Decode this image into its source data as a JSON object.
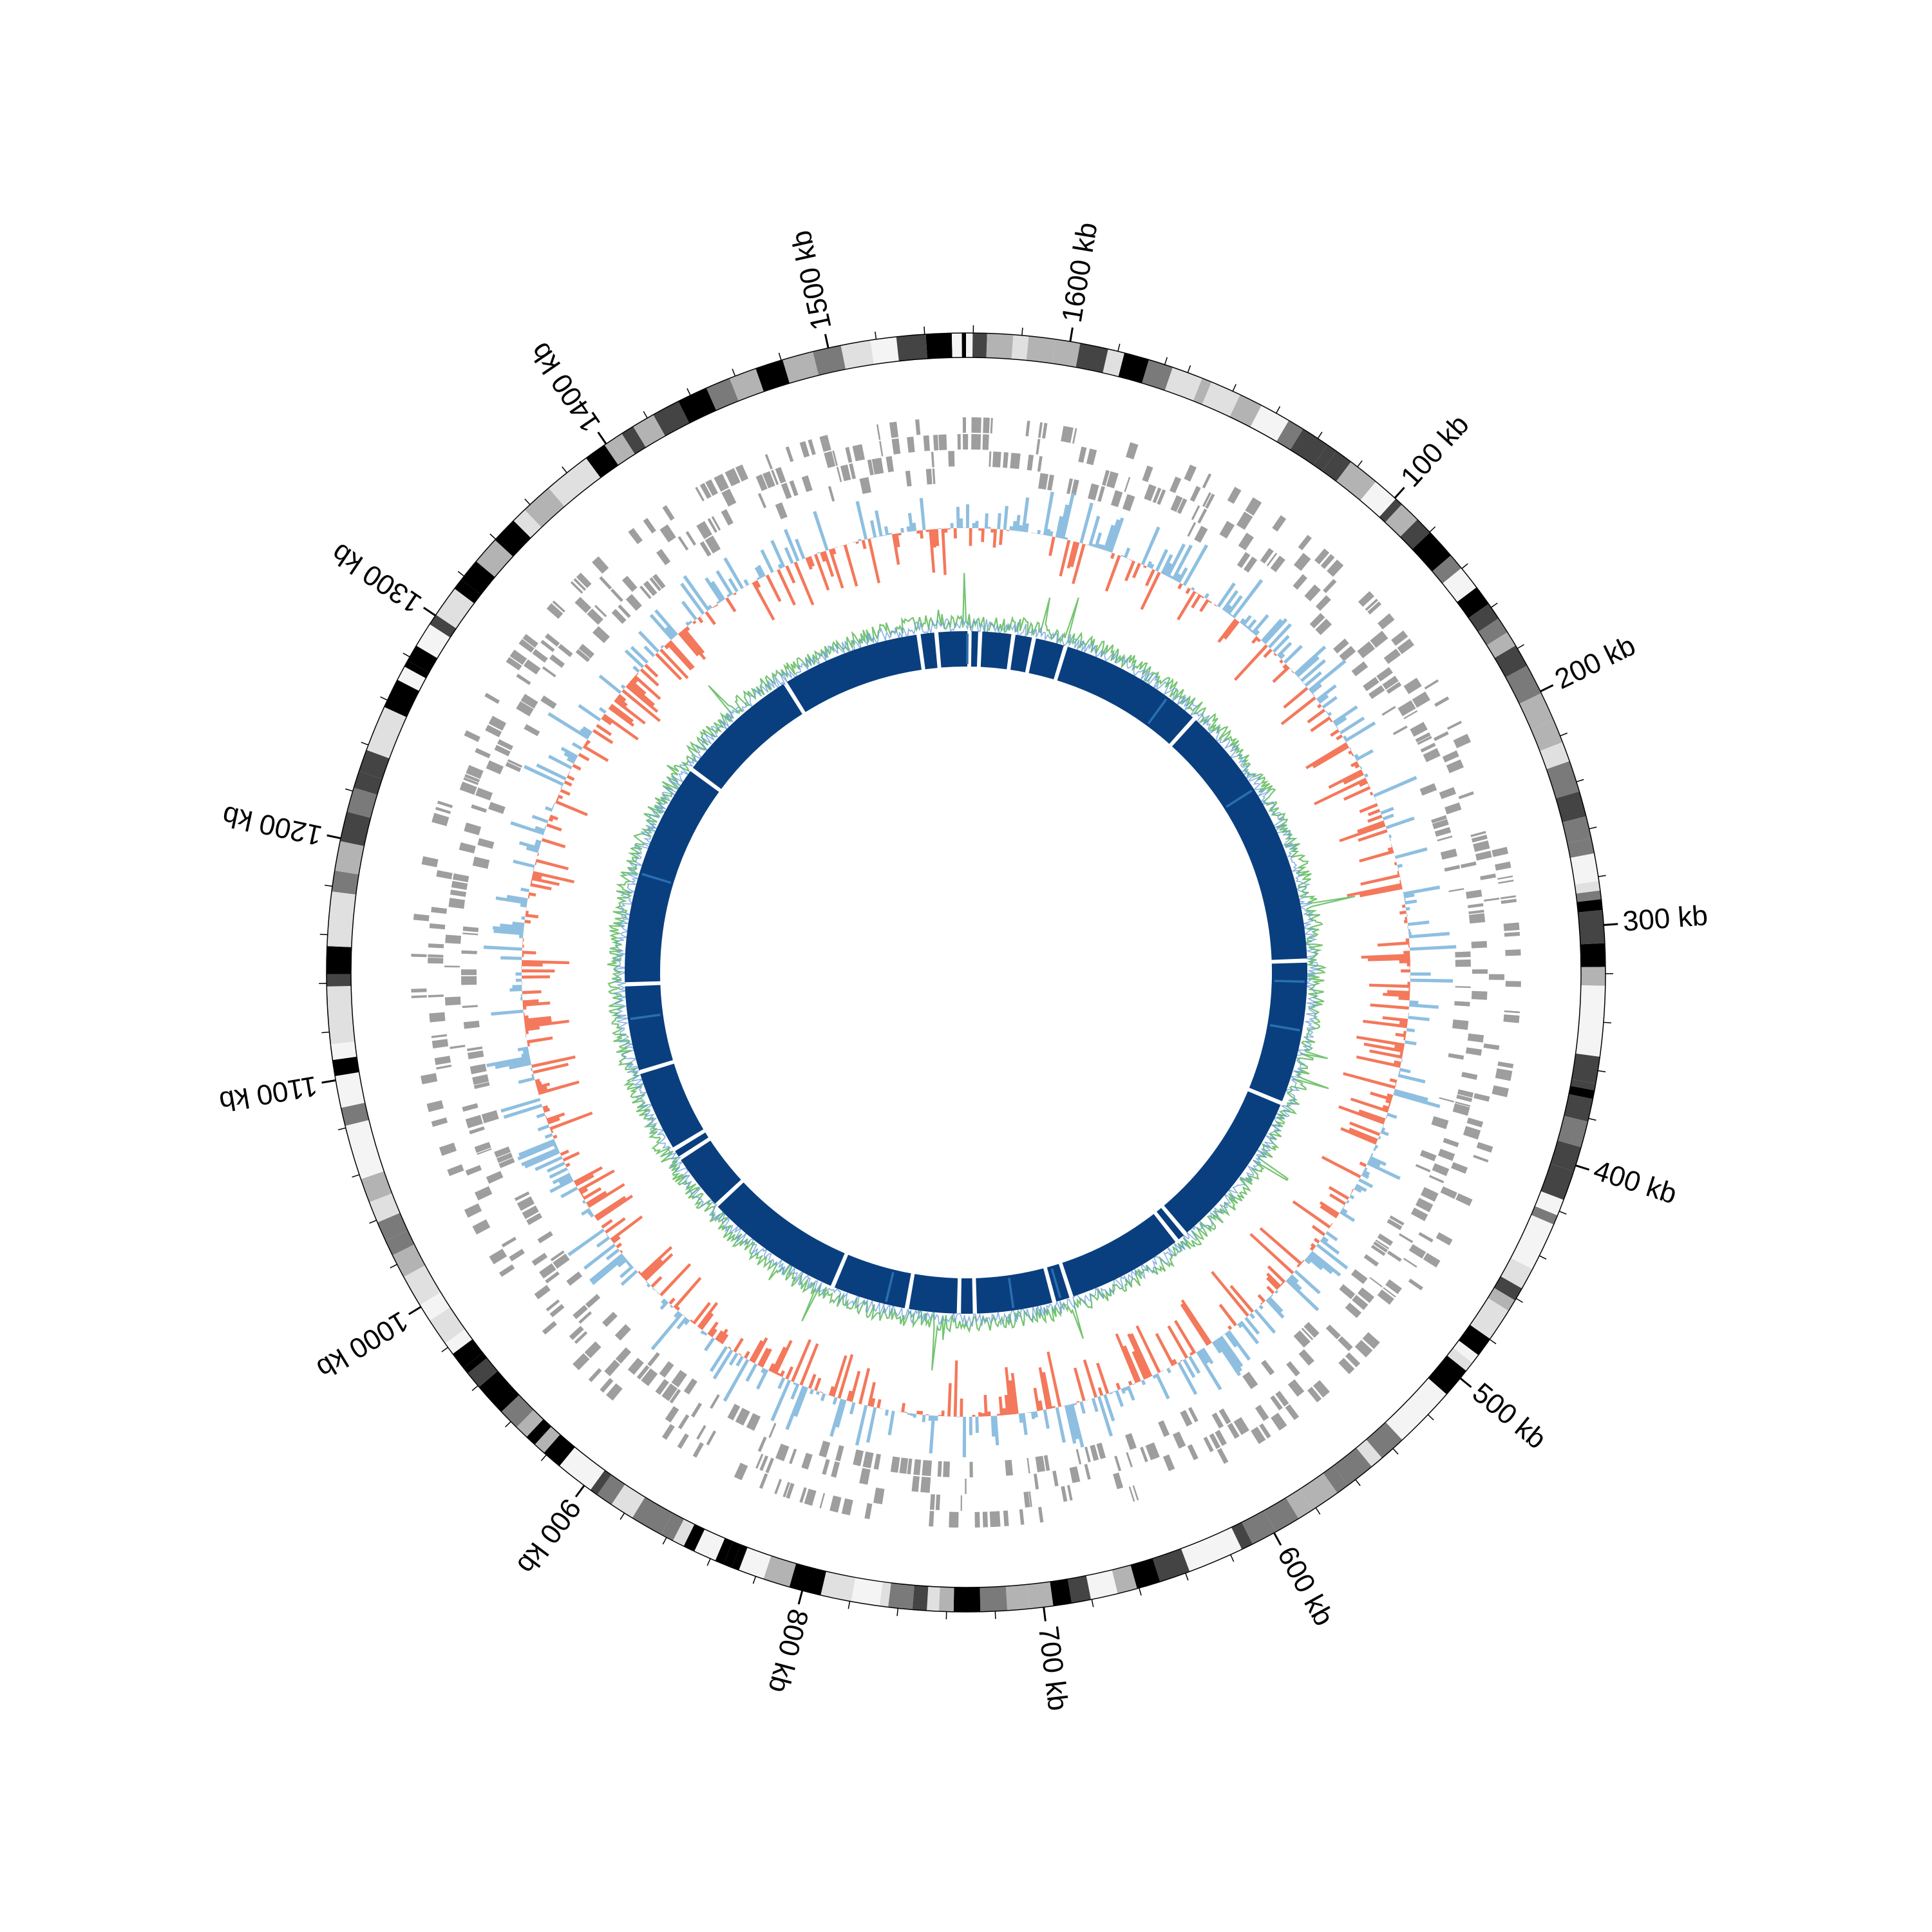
{
  "genome": {
    "length_kb": 1650,
    "tick_unit": "kb",
    "major_ticks_kb": [
      100,
      200,
      300,
      400,
      500,
      600,
      700,
      800,
      900,
      1000,
      1100,
      1200,
      1300,
      1400,
      1500,
      1600
    ],
    "tick_labels": [
      "100 kb",
      "200 kb",
      "300 kb",
      "400 kb",
      "500 kb",
      "600 kb",
      "700 kb",
      "800 kb",
      "900 kb",
      "1000 kb",
      "1100 kb",
      "1200 kb",
      "1300 kb",
      "1400 kb",
      "1500 kb",
      "1600 kb"
    ]
  },
  "tracks": [
    {
      "name": "ideogram-bands",
      "kind": "bands",
      "palette": [
        "#000000",
        "#444444",
        "#7a7a7a",
        "#b3b3b3",
        "#e0e0e0",
        "#f4f4f4"
      ]
    },
    {
      "name": "gene-features",
      "kind": "stacked-blocks",
      "color": "#9e9e9e"
    },
    {
      "name": "gc-skew",
      "kind": "diverging-area",
      "positive_color": "#8ebfe0",
      "negative_color": "#f4785b"
    },
    {
      "name": "gc-content",
      "kind": "line",
      "colors": [
        "#6ec16a",
        "#6a9fd8"
      ]
    },
    {
      "name": "synteny-blocks",
      "kind": "segments",
      "color": "#0a3f7f",
      "accent_color": "#2a6fb0"
    }
  ]
}
